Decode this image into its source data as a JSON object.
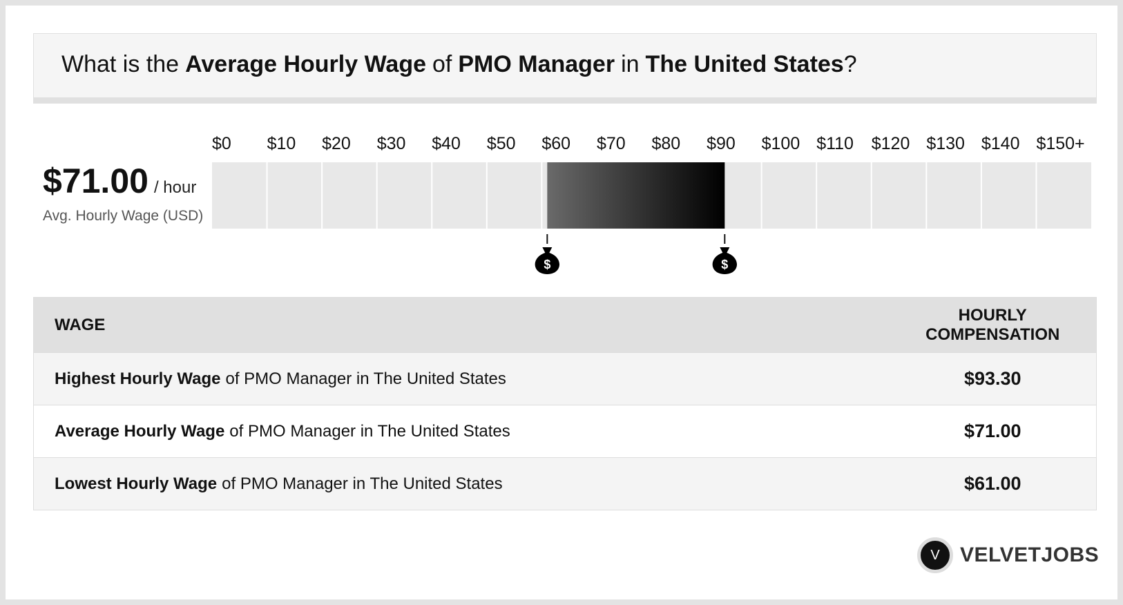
{
  "header": {
    "title": [
      "What is the",
      "Average Hourly Wage",
      "of",
      "PMO Manager",
      "in",
      "The United States",
      "?"
    ]
  },
  "summary": {
    "value": "$71.00",
    "unit": "/ hour",
    "caption": "Avg. Hourly Wage (USD)"
  },
  "chart_data": {
    "type": "range",
    "xlim": [
      0,
      160
    ],
    "xticks": [
      {
        "value": 0,
        "label": "$0"
      },
      {
        "value": 10,
        "label": "$10"
      },
      {
        "value": 20,
        "label": "$20"
      },
      {
        "value": 30,
        "label": "$30"
      },
      {
        "value": 40,
        "label": "$40"
      },
      {
        "value": 50,
        "label": "$50"
      },
      {
        "value": 60,
        "label": "$60"
      },
      {
        "value": 70,
        "label": "$70"
      },
      {
        "value": 80,
        "label": "$80"
      },
      {
        "value": 90,
        "label": "$90"
      },
      {
        "value": 100,
        "label": "$100"
      },
      {
        "value": 110,
        "label": "$110"
      },
      {
        "value": 120,
        "label": "$120"
      },
      {
        "value": 130,
        "label": "$130"
      },
      {
        "value": 140,
        "label": "$140"
      },
      {
        "value": 150,
        "label": "$150+"
      }
    ],
    "values": [
      61,
      93.3
    ]
  },
  "table": {
    "headers": [
      "WAGE",
      "HOURLY COMPENSATION"
    ],
    "rows": [
      [
        "Highest Hourly Wage",
        "of PMO Manager in The United States",
        "$93.30"
      ],
      [
        "Average Hourly Wage",
        "of PMO Manager in The United States",
        "$71.00"
      ],
      [
        "Lowest Hourly Wage",
        "of PMO Manager in The United States",
        "$61.00"
      ]
    ]
  },
  "logo": {
    "mark": "V",
    "text": "VELVETJOBS"
  }
}
